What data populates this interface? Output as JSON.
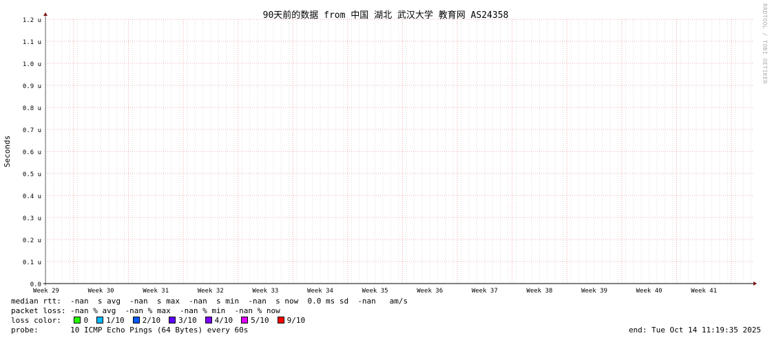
{
  "chart_data": {
    "type": "line",
    "title": "90天前的数据 from 中国 湖北 武汉大学 教育网 AS24358",
    "ylabel": "Seconds",
    "xlabel": "",
    "ylim": [
      0,
      1.2
    ],
    "yticks": [
      "0.0",
      "0.1 u",
      "0.2 u",
      "0.3 u",
      "0.4 u",
      "0.5 u",
      "0.6 u",
      "0.7 u",
      "0.8 u",
      "0.9 u",
      "1.0 u",
      "1.1 u",
      "1.2 u"
    ],
    "xticks": [
      "Week 29",
      "Week 30",
      "Week 31",
      "Week 32",
      "Week 33",
      "Week 34",
      "Week 35",
      "Week 36",
      "Week 37",
      "Week 38",
      "Week 39",
      "Week 40",
      "Week 41"
    ],
    "grid": true,
    "series": []
  },
  "legend": {
    "median_rtt": "median rtt:  -nan  s avg  -nan  s max  -nan  s min  -nan  s now  0.0 ms sd  -nan   am/s",
    "packet_loss": "packet loss: -nan % avg  -nan % max  -nan % min  -nan % now",
    "loss_color_label": "loss color: ",
    "loss_colors": [
      {
        "label": "0",
        "color": "#26ff00"
      },
      {
        "label": "1/10",
        "color": "#00b8ff"
      },
      {
        "label": "2/10",
        "color": "#0059ff"
      },
      {
        "label": "3/10",
        "color": "#5e00ff"
      },
      {
        "label": "4/10",
        "color": "#7e00ff"
      },
      {
        "label": "5/10",
        "color": "#dd00ff"
      },
      {
        "label": "9/10",
        "color": "#ff0000"
      }
    ],
    "probe": "probe:       10 ICMP Echo Pings (64 Bytes) every 60s",
    "end": "end: Tue Oct 14 11:19:35 2025"
  },
  "watermark": "RRDTOOL / TOBI OETIKER"
}
